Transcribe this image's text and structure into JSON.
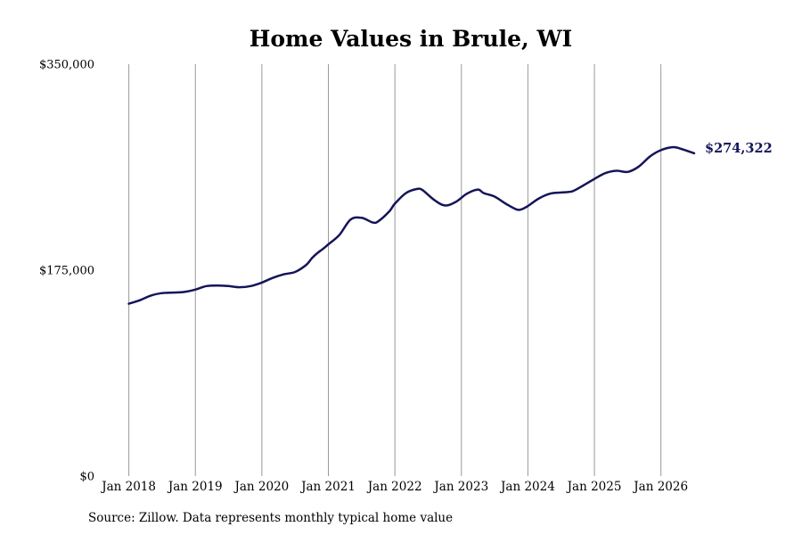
{
  "chart_data": {
    "type": "line",
    "title": "Home Values in Brule, WI",
    "source": "Source: Zillow. Data represents monthly typical home value",
    "y_ticks": [
      "$0",
      "$175,000",
      "$350,000"
    ],
    "ylim": [
      0,
      350000
    ],
    "x_ticks": [
      "Jan 2018",
      "Jan 2019",
      "Jan 2020",
      "Jan 2021",
      "Jan 2022",
      "Jan 2023",
      "Jan 2024",
      "Jan 2025",
      "Jan 2026"
    ],
    "x_tick_dates": [
      "2018-01",
      "2019-01",
      "2020-01",
      "2021-01",
      "2022-01",
      "2023-01",
      "2024-01",
      "2025-01",
      "2026-01"
    ],
    "xlim": [
      "2018-01",
      "2026-07"
    ],
    "grid": "vertical",
    "line_color": "#14145a",
    "gridline_color": "#999999",
    "end_label": "$274,322",
    "series": [
      {
        "x": [
          "2018-01",
          "2018-03",
          "2018-05",
          "2018-07",
          "2018-09",
          "2018-11",
          "2019-01",
          "2019-03",
          "2019-05",
          "2019-07",
          "2019-09",
          "2019-11",
          "2020-01",
          "2020-03",
          "2020-05",
          "2020-07",
          "2020-09",
          "2020-10",
          "2020-11",
          "2020-12",
          "2021-01",
          "2021-03",
          "2021-05",
          "2021-07",
          "2021-09",
          "2021-10",
          "2021-12",
          "2022-01",
          "2022-03",
          "2022-05",
          "2022-06",
          "2022-08",
          "2022-10",
          "2022-12",
          "2023-02",
          "2023-04",
          "2023-05",
          "2023-07",
          "2023-09",
          "2023-11",
          "2023-12",
          "2024-01",
          "2024-03",
          "2024-05",
          "2024-07",
          "2024-09",
          "2024-11",
          "2025-01",
          "2025-03",
          "2025-05",
          "2025-07",
          "2025-09",
          "2025-11",
          "2026-01",
          "2026-03",
          "2026-04",
          "2026-05",
          "2026-07"
        ],
        "values": [
          146500,
          149500,
          153500,
          155500,
          156000,
          156500,
          158500,
          161500,
          162000,
          161500,
          160500,
          161500,
          164500,
          168500,
          171500,
          173500,
          179500,
          185000,
          189500,
          193000,
          197000,
          205000,
          218000,
          219500,
          215500,
          216500,
          225000,
          231500,
          240500,
          244000,
          243000,
          235000,
          230000,
          233000,
          240000,
          243500,
          240500,
          237500,
          231500,
          226500,
          227000,
          229500,
          236000,
          240000,
          241000,
          242000,
          247000,
          252500,
          257500,
          259500,
          258500,
          263000,
          271500,
          277000,
          279500,
          279000,
          277500,
          274322
        ]
      }
    ]
  }
}
